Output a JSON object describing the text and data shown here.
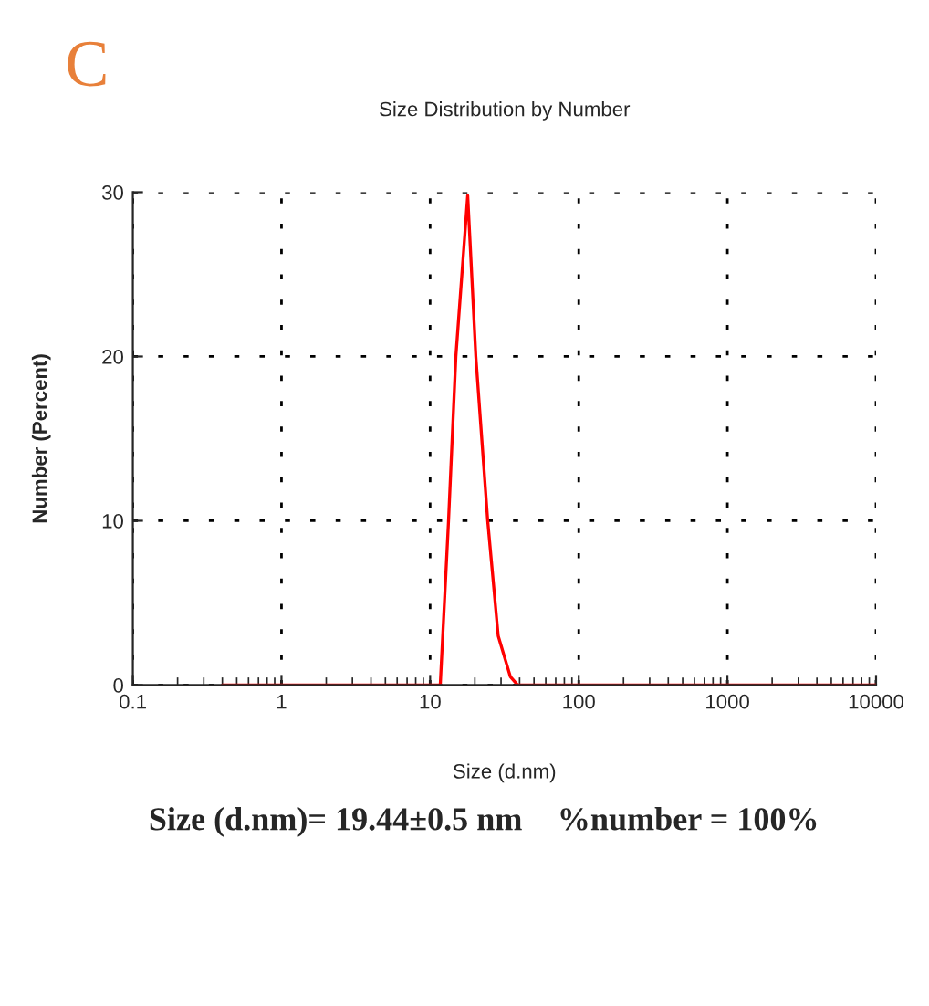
{
  "chart_data": {
    "type": "line",
    "title": "Size Distribution by Number",
    "xlabel": "Size (d.nm)",
    "ylabel": "Number (Percent)",
    "x": [
      0.4,
      11.7,
      13.3,
      14.9,
      17.9,
      20.3,
      24.4,
      28.7,
      34.7,
      38.8,
      62,
      10000
    ],
    "series": [
      {
        "color": "#ff0000",
        "values": [
          0,
          0,
          10,
          20,
          29.8,
          20,
          10,
          3,
          0.5,
          0,
          0,
          0
        ]
      }
    ],
    "log": "x",
    "xlim": [
      0.1,
      10000
    ],
    "xticks": [
      0.1,
      1,
      10,
      100,
      1000,
      10000
    ],
    "ylim": [
      0,
      30
    ],
    "yticks": [
      0,
      10,
      20,
      30
    ],
    "grid": true,
    "marker": "none",
    "line_style": "solid",
    "annotations": [
      "C",
      "Size (d.nm)= 19.44±0.5 nm",
      "%number = 100%"
    ]
  }
}
